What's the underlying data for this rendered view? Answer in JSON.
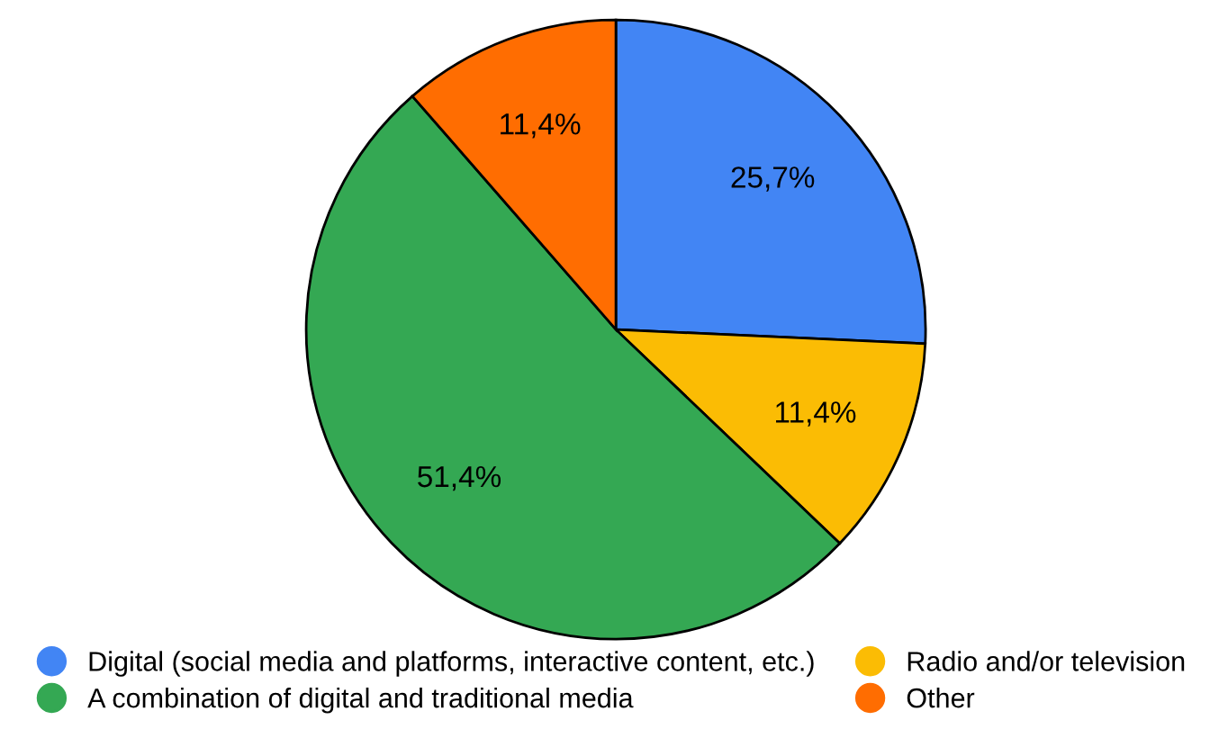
{
  "chart_data": {
    "type": "pie",
    "categories": [
      "Digital (social media and platforms, interactive content, etc.)",
      "Radio and/or television",
      "A combination of digital and traditional media",
      "Other"
    ],
    "values": [
      25.7,
      11.4,
      51.4,
      11.4
    ],
    "value_labels": [
      "25,7%",
      "11,4%",
      "51,4%",
      "11,4%"
    ],
    "colors": [
      "#4285f4",
      "#fbbc04",
      "#34a853",
      "#ff6d01"
    ],
    "legend": "bottom"
  }
}
